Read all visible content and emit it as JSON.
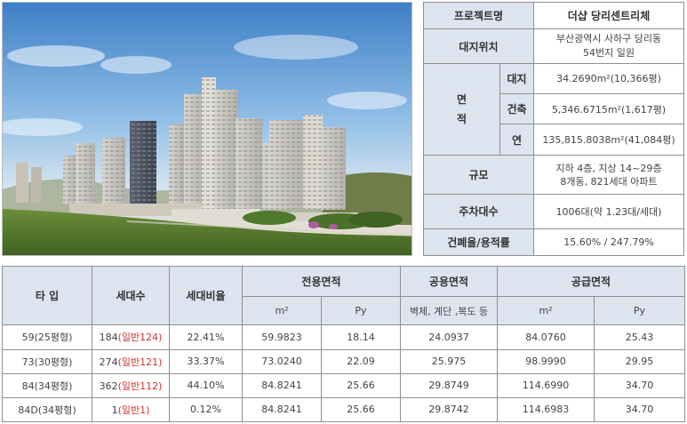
{
  "project": {
    "name_label": "프로젝트명",
    "name_value": "더샵 당리센트리체",
    "site_label": "대지위치",
    "site_value_line1": "부산광역시 사하구 당리동",
    "site_value_line2": "54번지 일원",
    "area_label_chars": [
      "면",
      "적"
    ],
    "land_label": "대지",
    "land_value": "34.2690m²(10,366평)",
    "building_label": "건축",
    "building_value": "5,346.6715m²(1,617평)",
    "floor_label": "연",
    "floor_value": "135,815.8038m²(41,084평)",
    "scale_label": "규모",
    "scale_value_line1": "지하 4층, 지상 14~29층",
    "scale_value_line2": "8개동, 821세대 아파트",
    "parking_label": "주차대수",
    "parking_value": "1006대(약 1.23대/세대)",
    "ratio_label": "건폐율/용적률",
    "ratio_value": "15.60% / 247.79%"
  },
  "units": {
    "headers": {
      "type": "타 입",
      "households": "세대수",
      "ratio": "세대비율",
      "exclusive": "전용면적",
      "common": "공용면적",
      "supply": "공급면적",
      "m2": "m²",
      "py": "Py",
      "common_desc": "벽체, 계단 ,복도 등"
    },
    "rows": [
      {
        "type": "59(25평형)",
        "count": "184",
        "general": "(일반124)",
        "ratio": "22.41%",
        "ex_m2": "59.9823",
        "ex_py": "18.14",
        "common": "24.0937",
        "sup_m2": "84.0760",
        "sup_py": "25.43"
      },
      {
        "type": "73(30평형)",
        "count": "274",
        "general": "(일반121)",
        "ratio": "33.37%",
        "ex_m2": "73.0240",
        "ex_py": "22.09",
        "common": "25.975",
        "sup_m2": "98.9990",
        "sup_py": "29.95"
      },
      {
        "type": "84(34평형)",
        "count": "362",
        "general": "(일반112)",
        "ratio": "44.10%",
        "ex_m2": "84.8241",
        "ex_py": "25.66",
        "common": "29.8749",
        "sup_m2": "114.6990",
        "sup_py": "34.70"
      },
      {
        "type": "84D(34평형)",
        "count": "1",
        "general": "(일반1)",
        "ratio": "0.12%",
        "ex_m2": "84.8241",
        "ex_py": "25.66",
        "common": "29.8742",
        "sup_m2": "114.6983",
        "sup_py": "34.70"
      }
    ]
  },
  "colors": {
    "header_bg": "#dde3ef",
    "border": "#8f8f8f",
    "accent_red": "#d0342c"
  }
}
